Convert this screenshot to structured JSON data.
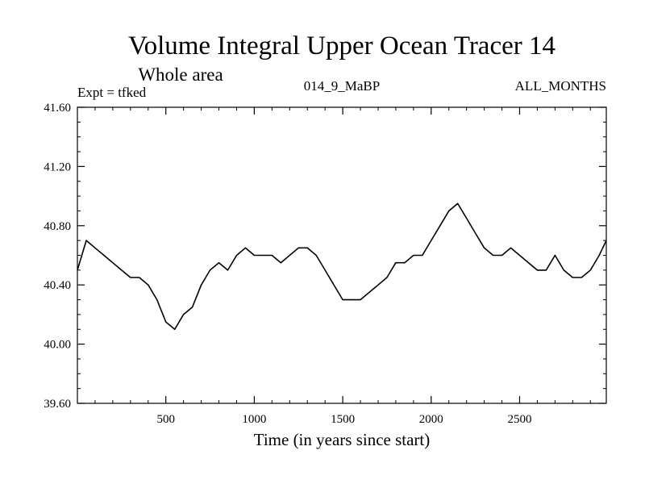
{
  "chart_data": {
    "type": "line",
    "title": "Volume Integral Upper Ocean Tracer 14",
    "subtitle": "Whole area",
    "info_left": "Expt = tfked",
    "info_center": "014_9_MaBP",
    "info_right": "ALL_MONTHS",
    "xlabel": "Time (in years since start)",
    "ylabel": "",
    "xlim": [
      0,
      2990
    ],
    "ylim": [
      39.6,
      41.6
    ],
    "x_ticks": [
      500,
      1000,
      1500,
      2000,
      2500
    ],
    "x_tick_labels": [
      "500",
      "1000",
      "1500",
      "2000",
      "2500"
    ],
    "y_ticks": [
      39.6,
      40.0,
      40.4,
      40.8,
      41.2,
      41.6
    ],
    "y_tick_labels": [
      "39.60",
      "40.00",
      "40.40",
      "40.80",
      "41.20",
      "41.60"
    ],
    "grid": false,
    "color": "#000000",
    "series": [
      {
        "x": [
          0,
          50,
          100,
          150,
          200,
          250,
          300,
          350,
          400,
          450,
          500,
          550,
          600,
          650,
          700,
          750,
          800,
          850,
          900,
          950,
          1000,
          1050,
          1100,
          1150,
          1200,
          1250,
          1300,
          1350,
          1400,
          1450,
          1500,
          1550,
          1600,
          1650,
          1700,
          1750,
          1800,
          1850,
          1900,
          1950,
          2000,
          2050,
          2100,
          2150,
          2200,
          2250,
          2300,
          2350,
          2400,
          2450,
          2500,
          2550,
          2600,
          2650,
          2700,
          2750,
          2800,
          2850,
          2900,
          2950,
          2990
        ],
        "values": [
          40.5,
          40.7,
          40.65,
          40.6,
          40.55,
          40.5,
          40.45,
          40.45,
          40.4,
          40.3,
          40.15,
          40.1,
          40.2,
          40.25,
          40.4,
          40.5,
          40.55,
          40.5,
          40.6,
          40.65,
          40.6,
          40.6,
          40.6,
          40.55,
          40.6,
          40.65,
          40.65,
          40.6,
          40.5,
          40.4,
          40.3,
          40.3,
          40.3,
          40.35,
          40.4,
          40.45,
          40.55,
          40.55,
          40.6,
          40.6,
          40.7,
          40.8,
          40.9,
          40.95,
          40.85,
          40.75,
          40.65,
          40.6,
          40.6,
          40.65,
          40.6,
          40.55,
          40.5,
          40.5,
          40.6,
          40.5,
          40.45,
          40.45,
          40.5,
          40.6,
          40.7
        ]
      }
    ]
  }
}
